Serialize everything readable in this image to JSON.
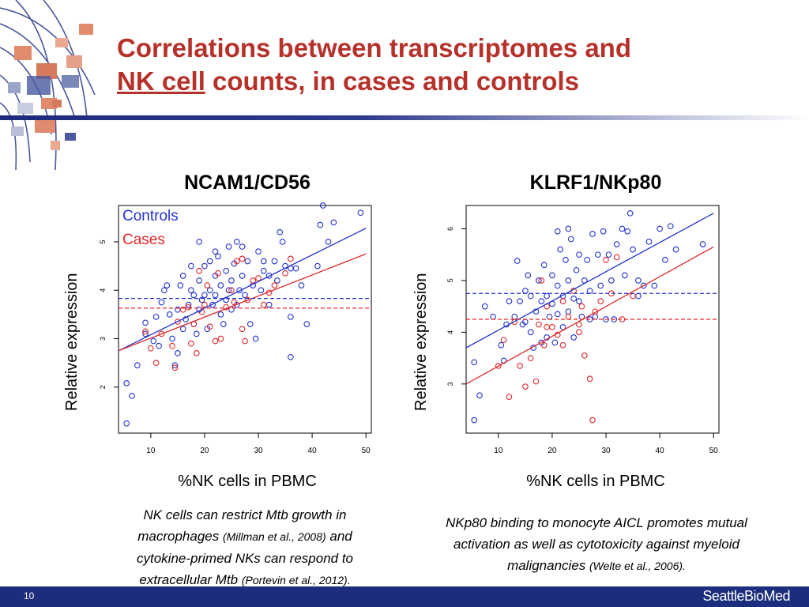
{
  "slide": {
    "title_part1": "Correlations between transcriptomes and",
    "title_link": "NK cell",
    "title_part2": " counts, in cases and controls",
    "page_number": "10",
    "brand": "SeattleBioMed"
  },
  "colors": {
    "controls": "#2233cc",
    "cases": "#e0282a",
    "title": "#b5312a",
    "footer": "#1b2d7c"
  },
  "chart_data": [
    {
      "type": "scatter",
      "title": "NCAM1/CD56",
      "xlabel": "%NK cells in PBMC",
      "ylabel": "Relative expression",
      "xlim": [
        4,
        51
      ],
      "ylim": [
        1.05,
        5.75
      ],
      "xticks": [
        10,
        20,
        30,
        40,
        50
      ],
      "yticks": [
        2,
        3,
        4,
        5
      ],
      "legend": {
        "position": "top-left",
        "entries": [
          "Controls",
          "Cases"
        ]
      },
      "series": [
        {
          "name": "Controls",
          "points": [
            [
              5.5,
              1.25
            ],
            [
              5.5,
              2.08
            ],
            [
              6.5,
              1.82
            ],
            [
              7.5,
              2.45
            ],
            [
              9,
              3.33
            ],
            [
              9,
              3.1
            ],
            [
              10.5,
              2.95
            ],
            [
              11,
              3.45
            ],
            [
              11.5,
              2.85
            ],
            [
              12,
              3.75
            ],
            [
              12.5,
              4.0
            ],
            [
              13,
              4.1
            ],
            [
              13.5,
              3.5
            ],
            [
              14,
              3.0
            ],
            [
              14.5,
              2.45
            ],
            [
              15,
              2.7
            ],
            [
              15,
              3.6
            ],
            [
              15.5,
              4.1
            ],
            [
              16,
              4.3
            ],
            [
              16,
              3.2
            ],
            [
              16.5,
              3.4
            ],
            [
              17,
              3.7
            ],
            [
              17.5,
              4.0
            ],
            [
              17.5,
              4.5
            ],
            [
              18,
              3.9
            ],
            [
              18,
              3.3
            ],
            [
              18.5,
              3.1
            ],
            [
              19,
              4.2
            ],
            [
              19,
              3.6
            ],
            [
              19.5,
              3.8
            ],
            [
              20,
              4.5
            ],
            [
              20,
              3.9
            ],
            [
              20.5,
              3.2
            ],
            [
              21,
              4.0
            ],
            [
              21,
              4.6
            ],
            [
              21.5,
              3.7
            ],
            [
              22,
              3.9
            ],
            [
              22,
              4.3
            ],
            [
              22.5,
              4.7
            ],
            [
              23,
              3.5
            ],
            [
              23,
              4.1
            ],
            [
              23.5,
              3.3
            ],
            [
              24,
              4.4
            ],
            [
              24,
              3.8
            ],
            [
              24.5,
              4.0
            ],
            [
              25,
              3.6
            ],
            [
              25,
              4.2
            ],
            [
              25.5,
              4.55
            ],
            [
              26,
              5.0
            ],
            [
              26,
              3.7
            ],
            [
              26.5,
              4.0
            ],
            [
              27,
              4.3
            ],
            [
              27.5,
              3.9
            ],
            [
              28,
              4.6
            ],
            [
              28.5,
              3.3
            ],
            [
              29,
              4.1
            ],
            [
              29.5,
              3.0
            ],
            [
              30,
              4.8
            ],
            [
              30.5,
              4.0
            ],
            [
              31,
              4.4
            ],
            [
              32,
              4.3
            ],
            [
              32,
              3.7
            ],
            [
              33,
              4.6
            ],
            [
              33.5,
              4.2
            ],
            [
              34,
              5.2
            ],
            [
              34.5,
              5.0
            ],
            [
              35,
              4.5
            ],
            [
              36,
              4.45
            ],
            [
              36,
              2.62
            ],
            [
              36,
              3.45
            ],
            [
              37,
              4.45
            ],
            [
              38,
              4.1
            ],
            [
              39,
              3.3
            ],
            [
              41,
              4.5
            ],
            [
              41.5,
              5.35
            ],
            [
              42,
              5.75
            ],
            [
              43,
              5.0
            ],
            [
              44,
              5.4
            ],
            [
              49,
              5.6
            ],
            [
              19,
              5.0
            ],
            [
              22,
              4.8
            ],
            [
              24.5,
              4.9
            ],
            [
              27,
              4.9
            ],
            [
              31,
              4.6
            ]
          ]
        },
        {
          "name": "Cases",
          "points": [
            [
              9,
              3.15
            ],
            [
              10,
              2.8
            ],
            [
              11,
              2.5
            ],
            [
              12,
              3.1
            ],
            [
              14,
              2.85
            ],
            [
              14.5,
              2.4
            ],
            [
              15,
              3.35
            ],
            [
              16,
              3.6
            ],
            [
              17,
              3.65
            ],
            [
              17.5,
              2.9
            ],
            [
              18,
              3.3
            ],
            [
              19,
              4.4
            ],
            [
              19.5,
              3.55
            ],
            [
              20,
              3.7
            ],
            [
              20.5,
              4.1
            ],
            [
              21,
              3.25
            ],
            [
              22,
              2.95
            ],
            [
              22.5,
              4.35
            ],
            [
              23,
              3.0
            ],
            [
              24,
              3.65
            ],
            [
              25,
              4.0
            ],
            [
              25.5,
              3.75
            ],
            [
              26,
              4.6
            ],
            [
              27,
              3.2
            ],
            [
              27.5,
              2.95
            ],
            [
              28,
              3.8
            ],
            [
              29,
              4.2
            ],
            [
              30,
              4.25
            ],
            [
              31,
              3.7
            ],
            [
              32,
              3.95
            ],
            [
              33,
              4.1
            ],
            [
              35,
              4.35
            ],
            [
              36,
              4.65
            ],
            [
              27,
              4.65
            ],
            [
              18.5,
              2.7
            ]
          ]
        }
      ],
      "fit_lines": [
        {
          "series": "Controls",
          "type": "regression",
          "from": [
            4,
            2.75
          ],
          "to": [
            50,
            5.28
          ]
        },
        {
          "series": "Cases",
          "type": "regression",
          "from": [
            4,
            2.75
          ],
          "to": [
            50,
            4.75
          ]
        },
        {
          "series": "Controls",
          "type": "mean",
          "y": 3.83
        },
        {
          "series": "Cases",
          "type": "mean",
          "y": 3.63
        }
      ]
    },
    {
      "type": "scatter",
      "title": "KLRF1/NKp80",
      "xlabel": "%NK cells in PBMC",
      "ylabel": "Relative expression",
      "xlim": [
        4,
        51
      ],
      "ylim": [
        2.05,
        6.45
      ],
      "xticks": [
        10,
        20,
        30,
        40,
        50
      ],
      "yticks": [
        3,
        4,
        5,
        6
      ],
      "legend": null,
      "series": [
        {
          "name": "Controls",
          "points": [
            [
              5.5,
              2.3
            ],
            [
              5.5,
              3.42
            ],
            [
              6.5,
              2.78
            ],
            [
              7.5,
              4.5
            ],
            [
              9,
              4.3
            ],
            [
              10.5,
              3.75
            ],
            [
              11,
              3.45
            ],
            [
              11.5,
              4.15
            ],
            [
              12,
              4.6
            ],
            [
              13,
              4.3
            ],
            [
              13.5,
              5.38
            ],
            [
              14,
              4.6
            ],
            [
              14.5,
              4.15
            ],
            [
              15,
              4.2
            ],
            [
              15,
              4.8
            ],
            [
              15.5,
              5.1
            ],
            [
              16,
              4.0
            ],
            [
              16,
              4.7
            ],
            [
              16.5,
              3.7
            ],
            [
              17,
              4.4
            ],
            [
              17.5,
              5.0
            ],
            [
              18,
              4.6
            ],
            [
              18,
              3.8
            ],
            [
              18.5,
              5.3
            ],
            [
              19,
              4.7
            ],
            [
              19,
              3.9
            ],
            [
              19.5,
              4.3
            ],
            [
              20,
              5.1
            ],
            [
              20,
              4.55
            ],
            [
              20.5,
              3.8
            ],
            [
              21,
              4.9
            ],
            [
              21,
              4.35
            ],
            [
              21.5,
              5.6
            ],
            [
              22,
              4.1
            ],
            [
              22,
              4.7
            ],
            [
              22.5,
              5.4
            ],
            [
              23,
              5.0
            ],
            [
              23,
              4.4
            ],
            [
              23.5,
              5.8
            ],
            [
              24,
              4.65
            ],
            [
              24,
              3.9
            ],
            [
              24.5,
              5.2
            ],
            [
              25,
              4.6
            ],
            [
              25,
              5.5
            ],
            [
              25.5,
              4.3
            ],
            [
              26,
              5.0
            ],
            [
              26.5,
              5.4
            ],
            [
              27,
              4.8
            ],
            [
              27.5,
              5.9
            ],
            [
              28,
              4.3
            ],
            [
              28.5,
              5.5
            ],
            [
              29,
              4.9
            ],
            [
              29.5,
              5.95
            ],
            [
              30,
              4.25
            ],
            [
              30.5,
              5.5
            ],
            [
              31,
              5.0
            ],
            [
              32,
              5.7
            ],
            [
              33,
              6.0
            ],
            [
              33.5,
              5.1
            ],
            [
              34,
              5.95
            ],
            [
              34.5,
              6.3
            ],
            [
              35,
              5.6
            ],
            [
              36,
              5.0
            ],
            [
              36,
              4.7
            ],
            [
              37,
              4.9
            ],
            [
              38,
              5.75
            ],
            [
              39,
              4.9
            ],
            [
              40,
              6.0
            ],
            [
              41,
              5.4
            ],
            [
              42,
              6.05
            ],
            [
              43,
              5.6
            ],
            [
              48,
              5.7
            ],
            [
              31.5,
              4.25
            ],
            [
              27,
              4.25
            ],
            [
              23,
              6.0
            ],
            [
              21,
              5.95
            ]
          ]
        },
        {
          "name": "Cases",
          "points": [
            [
              10,
              3.35
            ],
            [
              11,
              3.85
            ],
            [
              12,
              2.75
            ],
            [
              13,
              4.2
            ],
            [
              14,
              3.35
            ],
            [
              15,
              2.95
            ],
            [
              16,
              3.5
            ],
            [
              17,
              3.05
            ],
            [
              17.5,
              4.15
            ],
            [
              18,
              5.0
            ],
            [
              18.5,
              3.75
            ],
            [
              19,
              4.5
            ],
            [
              20,
              4.1
            ],
            [
              21,
              3.95
            ],
            [
              22,
              4.6
            ],
            [
              23,
              4.3
            ],
            [
              24,
              4.8
            ],
            [
              25,
              4.15
            ],
            [
              25.5,
              4.5
            ],
            [
              26,
              3.55
            ],
            [
              27,
              3.1
            ],
            [
              27.5,
              2.3
            ],
            [
              28,
              4.4
            ],
            [
              29,
              4.6
            ],
            [
              30,
              5.4
            ],
            [
              31,
              4.75
            ],
            [
              32,
              5.45
            ],
            [
              33,
              4.25
            ],
            [
              35,
              4.7
            ],
            [
              25,
              4.0
            ],
            [
              22,
              3.75
            ],
            [
              19,
              4.1
            ]
          ]
        }
      ],
      "fit_lines": [
        {
          "series": "Controls",
          "type": "regression",
          "from": [
            4,
            3.7
          ],
          "to": [
            50,
            6.3
          ]
        },
        {
          "series": "Cases",
          "type": "regression",
          "from": [
            4,
            3.0
          ],
          "to": [
            50,
            5.65
          ]
        },
        {
          "series": "Controls",
          "type": "mean",
          "y": 4.75
        },
        {
          "series": "Cases",
          "type": "mean",
          "y": 4.25
        }
      ]
    }
  ],
  "captions": [
    {
      "line1": "NK cells can restrict Mtb growth in",
      "line2_a": "macrophages ",
      "line2_ref": "(Millman et al., 2008)",
      "line2_b": " and",
      "line3": "cytokine-primed NKs can respond to",
      "line4_a": "extracellular Mtb ",
      "line4_ref": "(Portevin et al., 2012)."
    },
    {
      "line1": "NKp80 binding to monocyte AICL promotes mutual",
      "line2": "activation as well as cytotoxicity against myeloid",
      "line3_a": "malignancies ",
      "line3_ref": "(Welte et al., 2006)."
    }
  ]
}
